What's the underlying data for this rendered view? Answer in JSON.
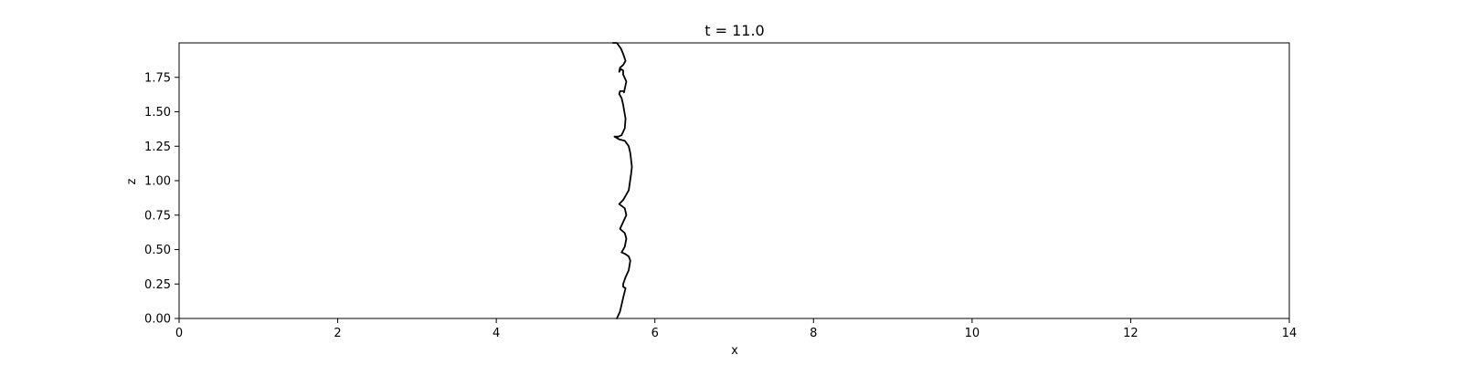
{
  "chart_data": {
    "type": "line",
    "title": "t = 11.0",
    "xlabel": "x",
    "ylabel": "z",
    "xlim": [
      0,
      14
    ],
    "ylim": [
      0,
      2
    ],
    "xticks": [
      0,
      2,
      4,
      6,
      8,
      10,
      12,
      14
    ],
    "xtick_labels": [
      "0",
      "2",
      "4",
      "6",
      "8",
      "10",
      "12",
      "14"
    ],
    "yticks": [
      0,
      0.25,
      0.5,
      0.75,
      1.0,
      1.25,
      1.5,
      1.75
    ],
    "ytick_labels": [
      "0.00",
      "0.25",
      "0.50",
      "0.75",
      "1.00",
      "1.25",
      "1.50",
      "1.75"
    ],
    "grid": false,
    "line_color": "#000000",
    "series": [
      {
        "x": [
          5.52,
          5.56,
          5.6,
          5.63,
          5.6,
          5.6,
          5.63,
          5.67,
          5.69,
          5.67,
          5.62,
          5.58,
          5.62,
          5.64,
          5.62,
          5.56,
          5.6,
          5.64,
          5.62,
          5.55,
          5.6,
          5.67,
          5.7,
          5.71,
          5.69,
          5.67,
          5.62,
          5.55,
          5.49,
          5.54,
          5.58,
          5.62,
          5.63,
          5.6,
          5.58,
          5.55,
          5.56,
          5.61,
          5.61,
          5.64,
          5.6,
          5.6,
          5.57,
          5.55,
          5.56,
          5.6,
          5.63,
          5.6,
          5.57,
          5.52,
          5.47
        ],
        "y": [
          0.0,
          0.05,
          0.15,
          0.22,
          0.23,
          0.25,
          0.3,
          0.35,
          0.42,
          0.45,
          0.47,
          0.48,
          0.52,
          0.58,
          0.62,
          0.65,
          0.7,
          0.75,
          0.8,
          0.83,
          0.86,
          0.93,
          1.05,
          1.1,
          1.2,
          1.25,
          1.29,
          1.3,
          1.32,
          1.32,
          1.33,
          1.38,
          1.45,
          1.55,
          1.6,
          1.63,
          1.65,
          1.65,
          1.64,
          1.72,
          1.77,
          1.8,
          1.81,
          1.79,
          1.82,
          1.84,
          1.87,
          1.92,
          1.96,
          2.0,
          2.0
        ]
      }
    ]
  }
}
